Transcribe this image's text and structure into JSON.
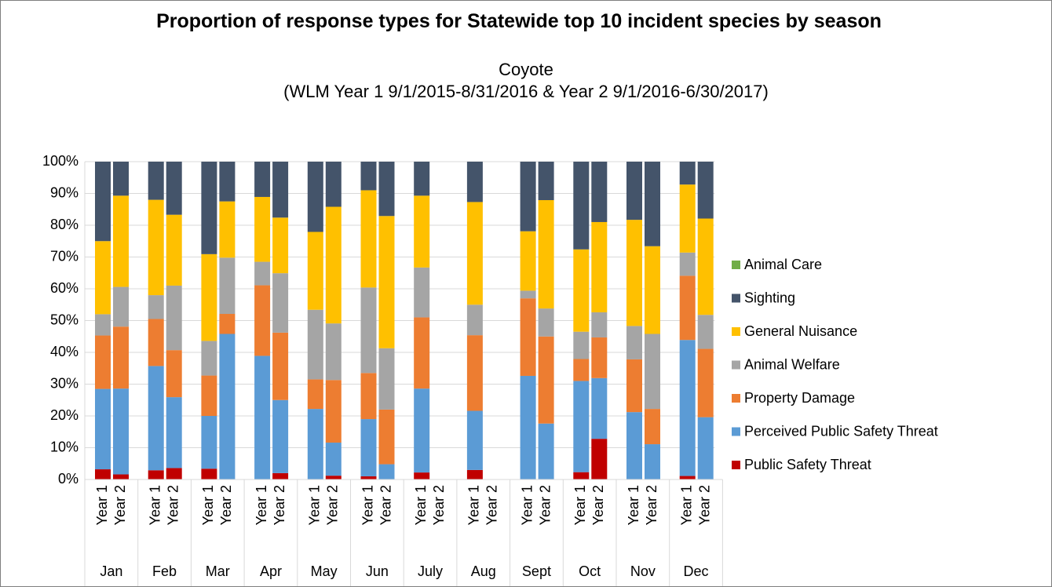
{
  "chart_data": {
    "type": "stacked-bar-percent",
    "title": "Proportion of response types for Statewide top 10 incident species by season",
    "subtitle": [
      "Coyote",
      "(WLM Year 1 9/1/2015-8/31/2016 & Year 2 9/1/2016-6/30/2017)"
    ],
    "groups": [
      "Jan",
      "Feb",
      "Mar",
      "Apr",
      "May",
      "Jun",
      "July",
      "Aug",
      "Sept",
      "Oct",
      "Nov",
      "Dec"
    ],
    "categories": [
      "Year 1",
      "Year 2",
      "Year 1",
      "Year 2",
      "Year 1",
      "Year 2",
      "Year 1",
      "Year 2",
      "Year 1",
      "Year 2",
      "Year 1",
      "Year 2",
      "Year 1",
      "Year 2",
      "Year 1",
      "Year 2",
      "Year 1",
      "Year 2",
      "Year 1",
      "Year 2",
      "Year 1",
      "Year 2",
      "Year 1",
      "Year 2"
    ],
    "ylim": [
      0,
      100
    ],
    "yticks": [
      {
        "value": 0,
        "label": "0%"
      },
      {
        "value": 10,
        "label": "10%"
      },
      {
        "value": 20,
        "label": "20%"
      },
      {
        "value": 30,
        "label": "30%"
      },
      {
        "value": 40,
        "label": "40%"
      },
      {
        "value": 50,
        "label": "50%"
      },
      {
        "value": 60,
        "label": "60%"
      },
      {
        "value": 70,
        "label": "70%"
      },
      {
        "value": 80,
        "label": "80%"
      },
      {
        "value": 90,
        "label": "90%"
      },
      {
        "value": 100,
        "label": "100%"
      }
    ],
    "grid": true,
    "legend": "right",
    "series": [
      {
        "name": "Public Safety Threat",
        "color": "#c00000",
        "values": [
          3.2,
          1.6,
          2.9,
          3.6,
          3.4,
          0,
          0,
          2,
          0,
          1.2,
          1,
          0,
          2.2,
          null,
          3,
          null,
          0,
          0,
          2.3,
          12.8,
          0,
          0,
          1.1,
          0
        ]
      },
      {
        "name": "Perceived Public Safety Threat",
        "color": "#5b9bd5",
        "values": [
          25.3,
          27,
          32.8,
          22.3,
          16.6,
          45.8,
          38.9,
          23,
          22.2,
          10.4,
          18,
          4.8,
          26.4,
          null,
          18.6,
          null,
          32.6,
          17.6,
          28.7,
          19.1,
          21.2,
          11.1,
          42.8,
          19.6
        ]
      },
      {
        "name": "Property Damage",
        "color": "#ed7d31",
        "values": [
          16.8,
          19.5,
          14.8,
          14.8,
          12.7,
          6.3,
          22.2,
          21.2,
          9.3,
          19.7,
          14.5,
          17.2,
          22.4,
          null,
          23.8,
          null,
          24.4,
          27.4,
          6.9,
          12.8,
          16.6,
          11.1,
          20.2,
          21.5
        ]
      },
      {
        "name": "Animal Welfare",
        "color": "#a5a5a5",
        "values": [
          6.7,
          12.5,
          7.5,
          20.3,
          10.9,
          17.7,
          7.4,
          18.7,
          21.9,
          17.8,
          26.9,
          19.3,
          15.7,
          null,
          9.6,
          null,
          2.4,
          8.8,
          8.6,
          7.9,
          10.5,
          23.6,
          7.3,
          10.7
        ]
      },
      {
        "name": "General Nuisance",
        "color": "#ffc000",
        "values": [
          23,
          28.7,
          30,
          22.3,
          27.3,
          17.7,
          20.4,
          17.5,
          24.5,
          36.7,
          30.6,
          41.6,
          22.6,
          null,
          32.3,
          null,
          18.7,
          34.1,
          25.9,
          28.4,
          33.4,
          27.6,
          21.4,
          30.3
        ]
      },
      {
        "name": "Sighting",
        "color": "#44546a",
        "values": [
          25,
          10.7,
          12,
          16.7,
          29.1,
          12.5,
          11.1,
          17.6,
          22.1,
          14.2,
          9,
          17.1,
          10.7,
          null,
          12.7,
          null,
          21.9,
          12.1,
          27.6,
          19,
          18.3,
          26.6,
          7.2,
          17.9
        ]
      },
      {
        "name": "Animal Care",
        "color": "#70ad47",
        "values": [
          0,
          0,
          0,
          0,
          0,
          0,
          0,
          0,
          0,
          0,
          0,
          0,
          0,
          null,
          0,
          null,
          0,
          0,
          0,
          0,
          0,
          0,
          0,
          0
        ]
      }
    ]
  }
}
